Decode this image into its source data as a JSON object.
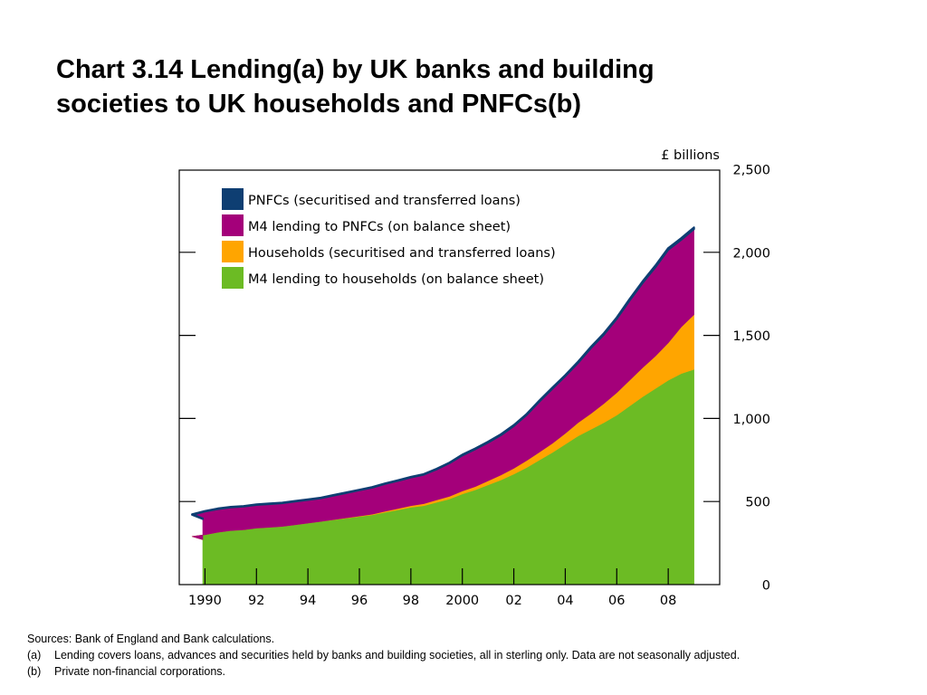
{
  "title": {
    "line1": "Chart 3.14 Lending(a) by UK banks and building",
    "line2": "societies to UK households and PNFCs(b)"
  },
  "chart_data": {
    "type": "area",
    "stacked": true,
    "unit_label": "£ billions",
    "x": [
      1989,
      1989.5,
      1990,
      1990.5,
      1991,
      1991.5,
      1992,
      1992.5,
      1993,
      1993.5,
      1994,
      1994.5,
      1995,
      1995.5,
      1996,
      1996.5,
      1997,
      1997.5,
      1998,
      1998.5,
      1999,
      1999.5,
      2000,
      2000.5,
      2001,
      2001.5,
      2002,
      2002.5,
      2003,
      2003.5,
      2004,
      2004.5,
      2005,
      2005.5,
      2006,
      2006.5,
      2007,
      2007.5,
      2008,
      2008.5,
      2009
    ],
    "x_tick_labels": [
      {
        "x": 1990,
        "label": "1990"
      },
      {
        "x": 1992,
        "label": "92"
      },
      {
        "x": 1994,
        "label": "94"
      },
      {
        "x": 1996,
        "label": "96"
      },
      {
        "x": 1998,
        "label": "98"
      },
      {
        "x": 2000,
        "label": "2000"
      },
      {
        "x": 2002,
        "label": "02"
      },
      {
        "x": 2004,
        "label": "04"
      },
      {
        "x": 2006,
        "label": "06"
      },
      {
        "x": 2008,
        "label": "08"
      }
    ],
    "xlim": [
      1989,
      2010
    ],
    "y_tick_labels": [
      "0",
      "500",
      "1,000",
      "1,500",
      "2,000",
      "2,500"
    ],
    "ylim": [
      0,
      2500
    ],
    "series": [
      {
        "name": "M4 lending to households (on balance sheet)",
        "color": "#6cbb24",
        "values": [
          270,
          290,
          300,
          315,
          325,
          330,
          340,
          345,
          350,
          360,
          370,
          380,
          390,
          400,
          410,
          420,
          435,
          450,
          465,
          475,
          495,
          515,
          545,
          570,
          600,
          630,
          665,
          705,
          750,
          795,
          845,
          895,
          935,
          975,
          1020,
          1075,
          1130,
          1180,
          1230,
          1270,
          1295
        ]
      },
      {
        "name": "Households (securitised and transferred loans)",
        "color": "#ffa500",
        "values": [
          0,
          0,
          0,
          0,
          0,
          0,
          0,
          0,
          0,
          0,
          0,
          0,
          1,
          2,
          3,
          4,
          6,
          8,
          10,
          12,
          14,
          16,
          18,
          20,
          25,
          30,
          35,
          42,
          48,
          55,
          65,
          80,
          95,
          115,
          135,
          155,
          175,
          195,
          225,
          280,
          330
        ]
      },
      {
        "name": "M4 lending to PNFCs (on balance sheet)",
        "color": "#a4007a",
        "values": [
          125,
          130,
          140,
          140,
          140,
          140,
          140,
          140,
          140,
          140,
          140,
          140,
          145,
          150,
          155,
          160,
          165,
          167,
          170,
          175,
          185,
          200,
          215,
          225,
          230,
          240,
          255,
          275,
          305,
          330,
          345,
          360,
          395,
          415,
          445,
          480,
          510,
          535,
          560,
          525,
          515
        ]
      },
      {
        "name": "PNFCs (securitised and transferred loans)",
        "color": "#0e3e72",
        "values": [
          3,
          3,
          3,
          3,
          3,
          3,
          3,
          3,
          3,
          3,
          3,
          3,
          3,
          3,
          3,
          3,
          3,
          3,
          3,
          3,
          3,
          3,
          4,
          4,
          5,
          5,
          5,
          5,
          6,
          6,
          6,
          7,
          7,
          8,
          8,
          9,
          9,
          10,
          10,
          10,
          10
        ]
      }
    ],
    "legend_position": "top-left",
    "legend_order": [
      3,
      2,
      1,
      0
    ]
  },
  "notes": {
    "sources": "Sources:  Bank of England and Bank calculations.",
    "a_mark": "(a)",
    "a_text": "Lending covers loans, advances and securities held by banks and building societies, all in sterling only.  Data are not seasonally adjusted.",
    "b_mark": "(b)",
    "b_text": "Private non-financial corporations."
  }
}
